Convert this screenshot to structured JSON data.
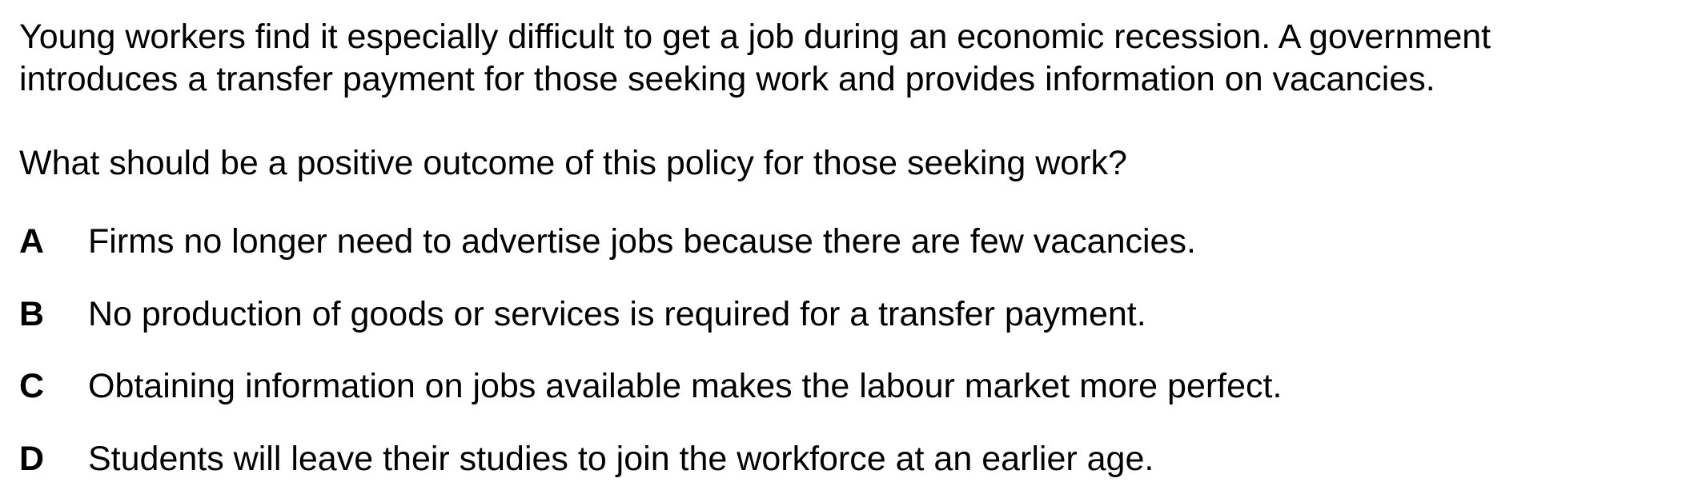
{
  "stem": {
    "line1": "Young workers find it especially difficult to get a job during an economic recession. A government",
    "line2": "introduces a transfer payment for those seeking work and provides information on vacancies."
  },
  "question": "What should be a positive outcome of this policy for those seeking work?",
  "options": [
    {
      "letter": "A",
      "text": "Firms no longer need to advertise jobs because there are few vacancies."
    },
    {
      "letter": "B",
      "text": "No production of goods or services is required for a transfer payment."
    },
    {
      "letter": "C",
      "text": "Obtaining information on jobs available makes the labour market more perfect."
    },
    {
      "letter": "D",
      "text": "Students will leave their studies to join the workforce at an earlier age."
    }
  ]
}
